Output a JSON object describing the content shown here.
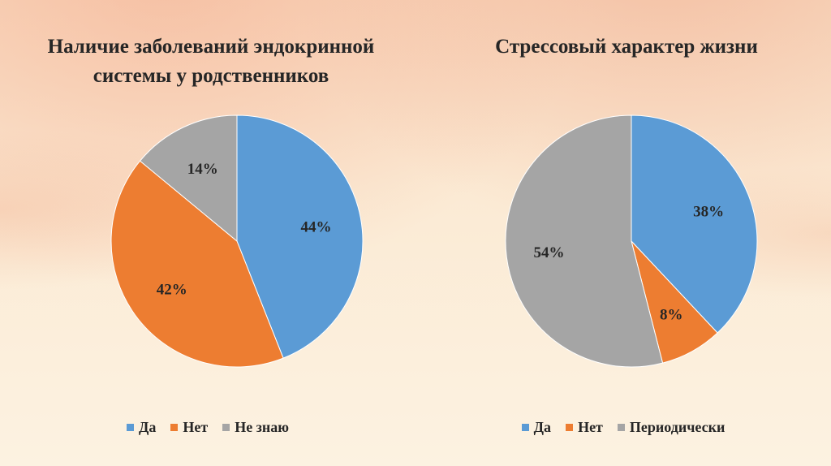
{
  "chart_data": [
    {
      "type": "pie",
      "title": "Наличие заболеваний эндокринной системы у родственников",
      "title_lines": [
        "Наличие заболеваний эндокринной",
        "системы у родственников"
      ],
      "categories": [
        "Да",
        "Нет",
        "Не знаю"
      ],
      "values": [
        44,
        42,
        14
      ],
      "labels": [
        "44%",
        "42%",
        "14%"
      ],
      "colors": [
        "#5b9bd5",
        "#ed7d31",
        "#a5a5a5"
      ],
      "legend": "bottom"
    },
    {
      "type": "pie",
      "title": "Стрессовый характер жизни",
      "title_lines": [
        "Стрессовый характер жизни"
      ],
      "categories": [
        "Да",
        "Нет",
        "Периодически"
      ],
      "values": [
        38,
        8,
        54
      ],
      "labels": [
        "38%",
        "8%",
        "54%"
      ],
      "colors": [
        "#5b9bd5",
        "#ed7d31",
        "#a5a5a5"
      ],
      "legend": "bottom"
    }
  ]
}
